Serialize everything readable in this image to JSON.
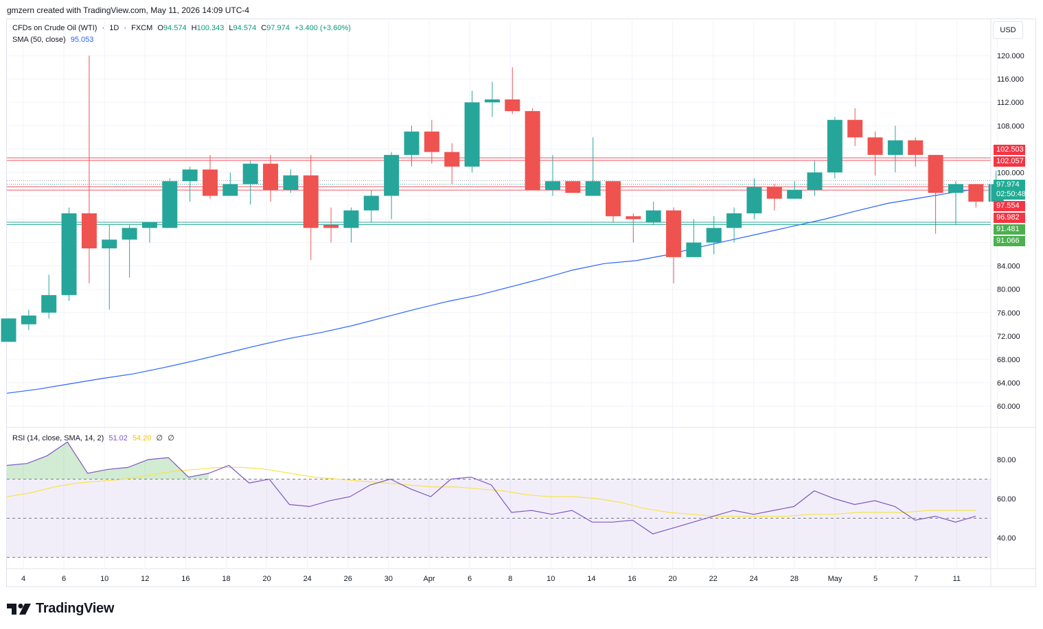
{
  "header": {
    "credit": "gmzern created with TradingView.com, May 11, 2026 14:09 UTC-4"
  },
  "legend": {
    "symbol": "CFDs on Crude Oil (WTI)",
    "sep1": "·",
    "interval": "1D",
    "sep2": "·",
    "exchange": "FXCM",
    "open_label": "O",
    "open": "94.574",
    "high_label": "H",
    "high": "100.343",
    "low_label": "L",
    "low": "94.574",
    "close_label": "C",
    "close": "97.974",
    "change": "+3.400 (+3.60%)",
    "sma_label": "SMA (50, close)",
    "sma_value": "95.053"
  },
  "rsi_legend": {
    "label": "RSI (14, close, SMA, 14, 2)",
    "rsi_value": "51.02",
    "rsi_ma_value": "54.20",
    "empty1": "∅",
    "empty2": "∅"
  },
  "currency_button": "USD",
  "price_axis": [
    "120.000",
    "116.000",
    "112.000",
    "108.000",
    "100.000",
    "84.000",
    "80.000",
    "76.000",
    "72.000",
    "68.000",
    "64.000",
    "60.000"
  ],
  "rsi_axis": [
    "80.00",
    "60.00",
    "40.00"
  ],
  "time_axis": [
    "4",
    "6",
    "10",
    "12",
    "16",
    "18",
    "20",
    "24",
    "26",
    "30",
    "Apr",
    "6",
    "8",
    "10",
    "14",
    "16",
    "20",
    "22",
    "24",
    "28",
    "May",
    "5",
    "7",
    "11"
  ],
  "price_labels": [
    {
      "text": "102.503",
      "color": "#f23645"
    },
    {
      "text": "102.057",
      "color": "#f23645"
    },
    {
      "text": "97.974",
      "color": "#22ab94"
    },
    {
      "text": "02:50:48",
      "color": "#22ab94"
    },
    {
      "text": "97.554",
      "color": "#f23645"
    },
    {
      "text": "96.982",
      "color": "#f23645"
    },
    {
      "text": "91.481",
      "color": "#089981"
    },
    {
      "text": "91.066",
      "color": "#089981"
    }
  ],
  "horizontal_levels": {
    "resistance": [
      102.503,
      102.057,
      97.554,
      96.982
    ],
    "support": [
      91.481,
      91.066
    ]
  },
  "colors": {
    "up": "#26a69a",
    "down": "#ef5350",
    "sma": "#2962ff",
    "rsi": "#7e57c2",
    "rsi_ma": "#f7e34a",
    "resistance": "#f23645",
    "support": "#089981"
  },
  "footer": {
    "brand": "TradingView"
  },
  "chart_data": {
    "type": "candlestick",
    "ylim": [
      57,
      124
    ],
    "candles": [
      [
        71,
        75,
        71,
        75
      ],
      [
        74,
        75.5,
        73,
        76.5
      ],
      [
        76,
        79,
        75,
        82.5
      ],
      [
        79,
        93,
        78,
        94
      ],
      [
        93,
        87,
        81,
        120
      ],
      [
        87,
        88.5,
        76.5,
        91
      ],
      [
        88.5,
        90.5,
        82,
        91
      ],
      [
        90.5,
        91.5,
        88,
        91.5
      ],
      [
        90.5,
        98.5,
        90.5,
        99
      ],
      [
        98.5,
        100.5,
        95,
        101
      ],
      [
        100.5,
        96,
        95.5,
        103
      ],
      [
        96,
        98,
        96,
        100
      ],
      [
        98,
        101.5,
        94.5,
        102
      ],
      [
        101.5,
        97,
        95,
        103
      ],
      [
        97,
        99.5,
        96.5,
        100.5
      ],
      [
        99.5,
        90.5,
        85,
        103
      ],
      [
        91,
        90.5,
        88,
        94
      ],
      [
        90.5,
        93.5,
        88,
        94
      ],
      [
        93.5,
        96,
        91.5,
        97
      ],
      [
        96,
        103,
        92,
        103.5
      ],
      [
        103,
        107,
        101,
        108
      ],
      [
        107,
        103.5,
        101.5,
        109
      ],
      [
        103.5,
        101,
        98,
        105
      ],
      [
        101,
        112,
        100,
        114
      ],
      [
        112,
        112.5,
        109.5,
        115.5
      ],
      [
        112.5,
        110.5,
        110,
        118
      ],
      [
        110.5,
        97,
        97,
        111
      ],
      [
        97,
        98.5,
        96,
        103
      ],
      [
        98.5,
        96.5,
        96.5,
        98.5
      ],
      [
        96,
        98.5,
        96,
        106
      ],
      [
        98.5,
        92.5,
        91.5,
        98.5
      ],
      [
        92.5,
        92,
        88,
        93
      ],
      [
        91.5,
        93.5,
        91,
        95
      ],
      [
        93.5,
        85.5,
        81,
        94
      ],
      [
        85.5,
        88,
        85.5,
        92
      ],
      [
        88,
        90.5,
        86,
        92.5
      ],
      [
        90.5,
        93,
        88,
        94
      ],
      [
        93,
        97.5,
        92,
        99
      ],
      [
        97.5,
        95.5,
        93.5,
        98
      ],
      [
        95.5,
        97,
        95.5,
        98.5
      ],
      [
        97,
        100,
        96,
        102
      ],
      [
        100,
        109,
        99,
        109.5
      ],
      [
        109,
        106,
        104.5,
        111
      ],
      [
        106,
        103,
        99.5,
        107
      ],
      [
        103,
        105.5,
        100,
        108
      ],
      [
        105.5,
        103,
        101,
        106
      ],
      [
        103,
        96.5,
        89.5,
        103
      ],
      [
        96.5,
        98,
        91,
        98.5
      ],
      [
        98,
        95,
        94,
        98
      ],
      [
        95,
        98,
        94.5,
        100.3
      ]
    ],
    "sma_50": [
      62.2,
      62.9,
      63.8,
      64.7,
      65.5,
      66.6,
      67.8,
      69.1,
      70.4,
      71.6,
      72.6,
      73.8,
      75.2,
      76.6,
      77.9,
      79.0,
      80.4,
      81.8,
      83.3,
      84.4,
      84.9,
      85.9,
      87.2,
      88.4,
      89.6,
      90.8,
      92.0,
      93.4,
      94.7,
      95.6,
      96.5,
      97.3
    ],
    "rsi": [
      77,
      78,
      82,
      89,
      73,
      75,
      76,
      80,
      81,
      71,
      73,
      77,
      68,
      70,
      57,
      56,
      59,
      61,
      67,
      70,
      65,
      61,
      70,
      71,
      67,
      53,
      54,
      52,
      54,
      48,
      48,
      49,
      42,
      45,
      48,
      51,
      54,
      52,
      54,
      56,
      64,
      60,
      57,
      59,
      56,
      49,
      51,
      48,
      51
    ],
    "rsi_ma": [
      61,
      63,
      66,
      68,
      69,
      70,
      72,
      74,
      75,
      76,
      76,
      75,
      73,
      71,
      70,
      69,
      68,
      67,
      66,
      66,
      65,
      64,
      62,
      61,
      61,
      60,
      58,
      55,
      53,
      52,
      51,
      51,
      51,
      51,
      52,
      52,
      53,
      53,
      53,
      54,
      54,
      54
    ]
  }
}
